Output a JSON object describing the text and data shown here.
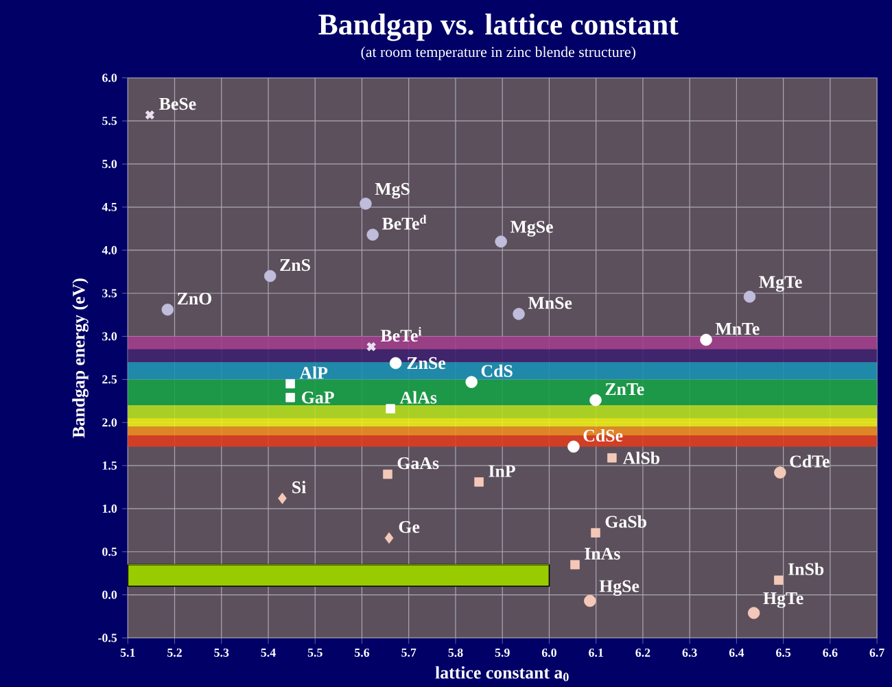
{
  "chart_data": {
    "type": "scatter",
    "title": "Bandgap vs. lattice constant",
    "subtitle": "(at room temperature in zinc blende structure)",
    "xlabel": "lattice constant a$_{0}$",
    "ylabel": "Bandgap energy (eV)",
    "xlim": [
      5.1,
      6.7
    ],
    "ylim": [
      -0.5,
      6.0
    ],
    "xticks": [
      {
        "value": 5.1,
        "label": "5.1"
      },
      {
        "value": 5.2,
        "label": "5.2"
      },
      {
        "value": 5.3,
        "label": "5.3"
      },
      {
        "value": 5.4,
        "label": "5.4"
      },
      {
        "value": 5.5,
        "label": "5.5"
      },
      {
        "value": 5.6,
        "label": "5.6"
      },
      {
        "value": 5.7,
        "label": "5.7"
      },
      {
        "value": 5.8,
        "label": "5.8"
      },
      {
        "value": 5.9,
        "label": "5.9"
      },
      {
        "value": 6.0,
        "label": "6.0"
      },
      {
        "value": 6.1,
        "label": "6.1"
      },
      {
        "value": 6.2,
        "label": "6.2"
      },
      {
        "value": 6.3,
        "label": "6.3"
      },
      {
        "value": 6.4,
        "label": "6.4"
      },
      {
        "value": 6.5,
        "label": "6.5"
      },
      {
        "value": 6.6,
        "label": "6.6"
      },
      {
        "value": 6.7,
        "label": "6.7"
      }
    ],
    "yticks": [
      {
        "value": -0.5,
        "label": "-0.5"
      },
      {
        "value": 0.0,
        "label": "0.0"
      },
      {
        "value": 0.5,
        "label": "0.5"
      },
      {
        "value": 1.0,
        "label": "1.0"
      },
      {
        "value": 1.5,
        "label": "1.5"
      },
      {
        "value": 2.0,
        "label": "2.0"
      },
      {
        "value": 2.5,
        "label": "2.5"
      },
      {
        "value": 3.0,
        "label": "3.0"
      },
      {
        "value": 3.5,
        "label": "3.5"
      },
      {
        "value": 4.0,
        "label": "4.0"
      },
      {
        "value": 4.5,
        "label": "4.5"
      },
      {
        "value": 5.0,
        "label": "5.0"
      },
      {
        "value": 5.5,
        "label": "5.5"
      },
      {
        "value": 6.0,
        "label": "6.0"
      }
    ],
    "grid": true,
    "bands": [
      {
        "axis": "y",
        "from": 2.85,
        "to": 3.0,
        "color": "#a03c8c"
      },
      {
        "axis": "y",
        "from": 2.7,
        "to": 2.85,
        "color": "#3c1e6e"
      },
      {
        "axis": "y",
        "from": 2.5,
        "to": 2.7,
        "color": "#1890b4"
      },
      {
        "axis": "y",
        "from": 2.2,
        "to": 2.5,
        "color": "#14a046"
      },
      {
        "axis": "y",
        "from": 2.05,
        "to": 2.2,
        "color": "#b4e01e"
      },
      {
        "axis": "y",
        "from": 1.95,
        "to": 2.05,
        "color": "#f0f014"
      },
      {
        "axis": "y",
        "from": 1.85,
        "to": 1.95,
        "color": "#f08c1e"
      },
      {
        "axis": "y",
        "from": 1.72,
        "to": 1.85,
        "color": "#e03c1e"
      }
    ],
    "series": [
      {
        "type": "line",
        "color": "#99cc00",
        "x": [
          5.1,
          6.0
        ],
        "values": [
          0.35,
          0.35
        ],
        "lower": [
          0.1,
          0.1
        ],
        "upper": [
          0.35,
          0.35
        ]
      },
      {
        "marker": "circle",
        "color": "#c0bcdc",
        "x": [
          5.185,
          5.404,
          5.608,
          5.623,
          5.897,
          5.935,
          6.428
        ],
        "values": [
          3.31,
          3.7,
          4.54,
          4.18,
          4.1,
          3.26,
          3.46
        ]
      },
      {
        "marker": "cross",
        "color": "#e8e0f0",
        "x": [
          5.147,
          5.62
        ],
        "values": [
          5.57,
          2.88
        ]
      },
      {
        "marker": "circle",
        "color": "#ffffff",
        "x": [
          5.672,
          5.834,
          6.099,
          6.052,
          6.335
        ],
        "values": [
          2.69,
          2.47,
          2.26,
          1.72,
          2.96
        ]
      },
      {
        "marker": "square",
        "color": "#ffffff",
        "x": [
          5.447,
          5.447,
          5.661
        ],
        "values": [
          2.45,
          2.29,
          2.16
        ]
      },
      {
        "marker": "square",
        "color": "#f4c8b8",
        "x": [
          5.655,
          5.85,
          6.134,
          6.099,
          6.055,
          6.49
        ],
        "values": [
          1.4,
          1.31,
          1.59,
          0.72,
          0.35,
          0.17
        ]
      },
      {
        "marker": "diamond",
        "color": "#f4c8b8",
        "x": [
          5.43,
          5.658
        ],
        "values": [
          1.12,
          0.66
        ]
      },
      {
        "marker": "circle",
        "color": "#f4c8b8",
        "x": [
          6.493,
          6.087,
          6.437
        ],
        "values": [
          1.42,
          -0.07,
          -0.21
        ]
      }
    ],
    "annotations": [
      {
        "text": "BeSe",
        "x": 5.147,
        "y": 5.57
      },
      {
        "text": "MgS",
        "x": 5.608,
        "y": 4.54
      },
      {
        "text": "BeTe$^{d}$",
        "x": 5.623,
        "y": 4.18
      },
      {
        "text": "ZnS",
        "x": 5.404,
        "y": 3.7
      },
      {
        "text": "ZnO",
        "x": 5.185,
        "y": 3.31
      },
      {
        "text": "MgSe",
        "x": 5.897,
        "y": 4.1
      },
      {
        "text": "MnSe",
        "x": 5.935,
        "y": 3.26
      },
      {
        "text": "MgTe",
        "x": 6.428,
        "y": 3.46
      },
      {
        "text": "MnTe",
        "x": 6.335,
        "y": 2.96
      },
      {
        "text": "BeTe$^{i}$",
        "x": 5.62,
        "y": 2.88
      },
      {
        "text": "ZnSe",
        "x": 5.672,
        "y": 2.69
      },
      {
        "text": "CdS",
        "x": 5.834,
        "y": 2.47
      },
      {
        "text": "ZnTe",
        "x": 6.099,
        "y": 2.26
      },
      {
        "text": "AlP",
        "x": 5.447,
        "y": 2.45
      },
      {
        "text": "GaP",
        "x": 5.447,
        "y": 2.29
      },
      {
        "text": "AlAs",
        "x": 5.661,
        "y": 2.16
      },
      {
        "text": "CdSe",
        "x": 6.052,
        "y": 1.72
      },
      {
        "text": "AlSb",
        "x": 6.134,
        "y": 1.59
      },
      {
        "text": "CdTe",
        "x": 6.493,
        "y": 1.42
      },
      {
        "text": "GaAs",
        "x": 5.655,
        "y": 1.4
      },
      {
        "text": "InP",
        "x": 5.85,
        "y": 1.31
      },
      {
        "text": "Si",
        "x": 5.43,
        "y": 1.12
      },
      {
        "text": "Ge",
        "x": 5.658,
        "y": 0.66
      },
      {
        "text": "GaSb",
        "x": 6.099,
        "y": 0.72
      },
      {
        "text": "InAs",
        "x": 6.055,
        "y": 0.35
      },
      {
        "text": "HgSe",
        "x": 6.087,
        "y": -0.07
      },
      {
        "text": "InSb",
        "x": 6.49,
        "y": 0.17
      },
      {
        "text": "HgTe",
        "x": 6.437,
        "y": -0.21
      }
    ]
  }
}
